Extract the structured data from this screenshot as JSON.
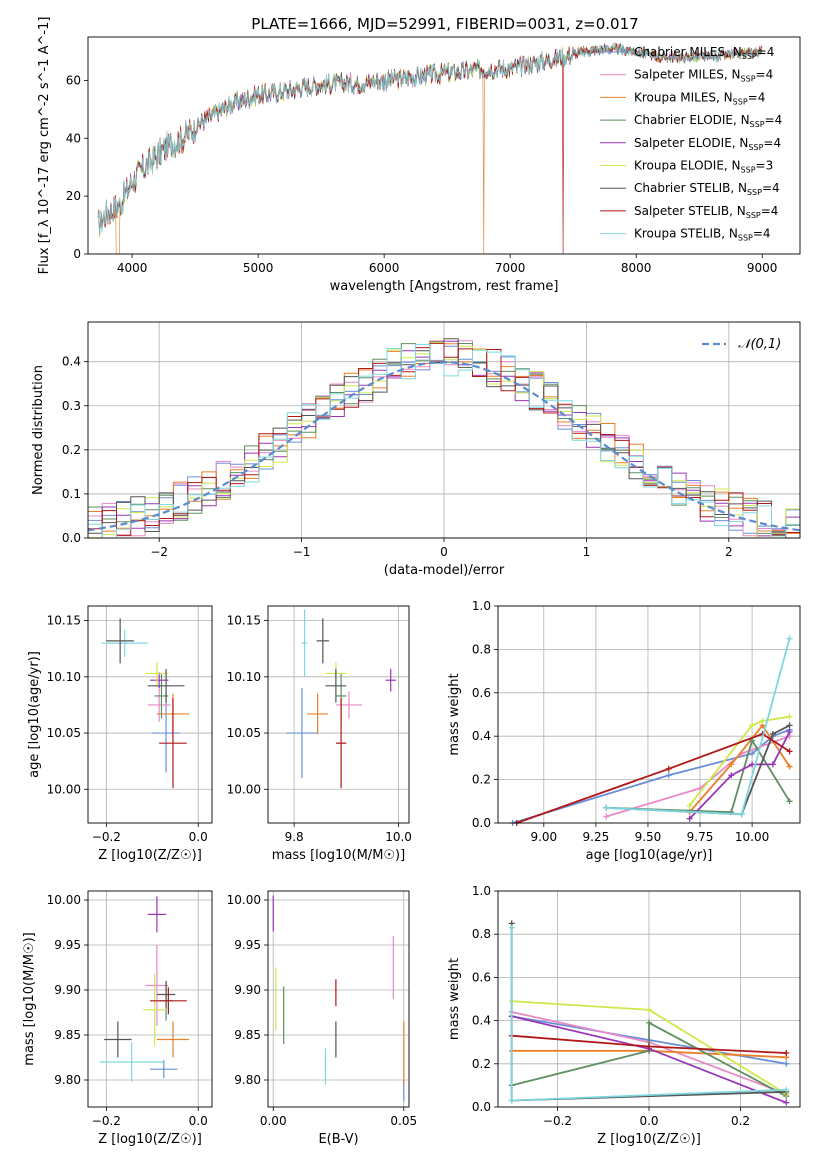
{
  "title": "PLATE=1666, MJD=52991, FIBERID=0031, z=0.017",
  "colors": {
    "Chabrier MILES": "#6a8fd8",
    "Salpeter MILES": "#e889c6",
    "Kroupa MILES": "#e8802a",
    "Chabrier ELODIE": "#5e8f62",
    "Salpeter ELODIE": "#9a35b7",
    "Kroupa ELODIE": "#cfe84b",
    "Chabrier STELIB": "#555555",
    "Salpeter STELIB": "#b01818",
    "Kroupa STELIB": "#7fd6e0"
  },
  "chart_data": [
    {
      "id": "spectrum",
      "type": "line",
      "xlabel": "wavelength [Angstrom, rest frame]",
      "ylabel": "Flux [f_λ 10^-17 erg cm^-2 s^-1 A^-1]",
      "xlim": [
        3650,
        9300
      ],
      "ylim": [
        0,
        75
      ],
      "xticks": [
        "4000",
        "5000",
        "6000",
        "7000",
        "8000",
        "9000"
      ],
      "yticks": [
        "0",
        "20",
        "40",
        "60"
      ],
      "series": [
        {
          "name": "Chabrier MILES",
          "n_ssp": "4"
        },
        {
          "name": "Salpeter MILES",
          "n_ssp": "4"
        },
        {
          "name": "Kroupa MILES",
          "n_ssp": "4"
        },
        {
          "name": "Chabrier ELODIE",
          "n_ssp": "4"
        },
        {
          "name": "Salpeter ELODIE",
          "n_ssp": "4"
        },
        {
          "name": "Kroupa ELODIE",
          "n_ssp": "3"
        },
        {
          "name": "Chabrier STELIB",
          "n_ssp": "4"
        },
        {
          "name": "Salpeter STELIB",
          "n_ssp": "4"
        },
        {
          "name": "Kroupa STELIB",
          "n_ssp": "4"
        }
      ],
      "continuum": {
        "x": [
          3730,
          3800,
          3900,
          4000,
          4100,
          4200,
          4300,
          4400,
          4500,
          4600,
          4800,
          5000,
          5200,
          5400,
          5600,
          5800,
          6000,
          6200,
          6400,
          6600,
          6800,
          7000,
          7200,
          7400,
          7600,
          7800,
          8000,
          8200,
          8500,
          8800,
          9000,
          9200
        ],
        "y": [
          10,
          14,
          17,
          25,
          30,
          34,
          38,
          40,
          44,
          47,
          52,
          55,
          56,
          58,
          59,
          59,
          60,
          61,
          62,
          63,
          64,
          64,
          66,
          68,
          70,
          71,
          70,
          68,
          68,
          69,
          70,
          71
        ]
      },
      "dropouts": [
        {
          "series": "Kroupa MILES",
          "x": 6790
        },
        {
          "series": "Salpeter STELIB",
          "x": 7420
        }
      ]
    },
    {
      "id": "residuals",
      "type": "histogram",
      "xlabel": "(data-model)/error",
      "ylabel": "Normed distribution",
      "xlim": [
        -2.5,
        2.5
      ],
      "ylim": [
        0,
        0.49
      ],
      "xticks": [
        "−2",
        "−1",
        "0",
        "1",
        "2"
      ],
      "yticks": [
        "0.0",
        "0.1",
        "0.2",
        "0.3",
        "0.4"
      ],
      "legend": "𝒩(0,1)",
      "legend_position": "top-right",
      "grid": true
    },
    {
      "id": "age-vs-Z",
      "type": "scatter",
      "xlabel": "Z [log10(Z/Z☉)]",
      "ylabel": "age  [log10(age/yr)]",
      "xlim": [
        -0.24,
        0.03
      ],
      "ylim": [
        9.97,
        10.163
      ],
      "xticks": [
        "−0.2",
        "0.0"
      ],
      "yticks": [
        "10.00",
        "10.05",
        "10.10",
        "10.15"
      ],
      "points": [
        {
          "series": "Chabrier MILES",
          "x": -0.07,
          "y": 10.05,
          "xerr": 0.03,
          "yerr": 0.035
        },
        {
          "series": "Salpeter MILES",
          "x": -0.085,
          "y": 10.075,
          "xerr": 0.025,
          "yerr": 0.015
        },
        {
          "series": "Kroupa MILES",
          "x": -0.055,
          "y": 10.067,
          "xerr": 0.035,
          "yerr": 0.018
        },
        {
          "series": "Chabrier ELODIE",
          "x": -0.08,
          "y": 10.083,
          "xerr": 0.015,
          "yerr": 0.02
        },
        {
          "series": "Salpeter ELODIE",
          "x": -0.085,
          "y": 10.097,
          "xerr": 0.02,
          "yerr": 0.007
        },
        {
          "series": "Kroupa ELODIE",
          "x": -0.09,
          "y": 10.103,
          "xerr": 0.025,
          "yerr": 0.01
        },
        {
          "series": "Chabrier STELIB",
          "x": -0.07,
          "y": 10.092,
          "xerr": 0.04,
          "yerr": 0.015
        },
        {
          "series": "Salpeter STELIB",
          "x": -0.055,
          "y": 10.041,
          "xerr": 0.03,
          "yerr": 0.04
        },
        {
          "series": "Kroupa STELIB",
          "x": -0.16,
          "y": 10.13,
          "xerr": 0.05,
          "yerr": 0.012
        },
        {
          "series": "Chabrier STELIB",
          "x": -0.17,
          "y": 10.132,
          "xerr": 0.03,
          "yerr": 0.02
        }
      ]
    },
    {
      "id": "age-vs-mass",
      "type": "scatter",
      "xlabel": "mass [log10(M/M☉)]",
      "ylabel": "",
      "xlim": [
        9.75,
        10.02
      ],
      "ylim": [
        9.97,
        10.163
      ],
      "xticks": [
        "9.8",
        "10.0"
      ],
      "yticks": [
        "10.00",
        "10.05",
        "10.10",
        "10.15"
      ],
      "points": [
        {
          "series": "Chabrier MILES",
          "x": 9.815,
          "y": 10.05,
          "xerr": 0.03,
          "yerr": 0.04
        },
        {
          "series": "Salpeter MILES",
          "x": 9.905,
          "y": 10.075,
          "xerr": 0.025,
          "yerr": 0.012
        },
        {
          "series": "Kroupa MILES",
          "x": 9.845,
          "y": 10.067,
          "xerr": 0.02,
          "yerr": 0.018
        },
        {
          "series": "Chabrier ELODIE",
          "x": 9.89,
          "y": 10.083,
          "xerr": 0.01,
          "yerr": 0.02
        },
        {
          "series": "Salpeter ELODIE",
          "x": 9.985,
          "y": 10.097,
          "xerr": 0.01,
          "yerr": 0.01
        },
        {
          "series": "Kroupa ELODIE",
          "x": 9.88,
          "y": 10.103,
          "xerr": 0.02,
          "yerr": 0.01
        },
        {
          "series": "Chabrier STELIB",
          "x": 9.88,
          "y": 10.092,
          "xerr": 0.02,
          "yerr": 0.015
        },
        {
          "series": "Salpeter STELIB",
          "x": 9.89,
          "y": 10.041,
          "xerr": 0.01,
          "yerr": 0.04
        },
        {
          "series": "Kroupa STELIB",
          "x": 9.82,
          "y": 10.13,
          "xerr": 0.005,
          "yerr": 0.03
        },
        {
          "series": "Chabrier STELIB",
          "x": 9.855,
          "y": 10.132,
          "xerr": 0.012,
          "yerr": 0.02
        }
      ]
    },
    {
      "id": "weight-vs-age",
      "type": "line",
      "xlabel": "age  [log10(age/yr)]",
      "ylabel": "mass weight",
      "xlim": [
        8.78,
        10.23
      ],
      "ylim": [
        0,
        1
      ],
      "xticks": [
        "9.00",
        "9.25",
        "9.50",
        "9.75",
        "10.00"
      ],
      "yticks": [
        "0.0",
        "0.2",
        "0.4",
        "0.6",
        "0.8",
        "1.0"
      ],
      "grid": true,
      "series": [
        {
          "name": "Chabrier MILES",
          "x": [
            8.85,
            9.6,
            10.0,
            10.1,
            10.18
          ],
          "y": [
            0.0,
            0.22,
            0.32,
            0.4,
            0.43
          ]
        },
        {
          "name": "Salpeter MILES",
          "x": [
            9.3,
            9.75,
            9.95,
            10.18
          ],
          "y": [
            0.03,
            0.16,
            0.32,
            0.4
          ]
        },
        {
          "name": "Kroupa MILES",
          "x": [
            9.7,
            9.9,
            10.05,
            10.18
          ],
          "y": [
            0.05,
            0.27,
            0.45,
            0.26
          ]
        },
        {
          "name": "Chabrier ELODIE",
          "x": [
            9.3,
            9.9,
            10.0,
            10.18
          ],
          "y": [
            0.07,
            0.05,
            0.38,
            0.1
          ]
        },
        {
          "name": "Salpeter ELODIE",
          "x": [
            9.7,
            9.9,
            10.0,
            10.1,
            10.18
          ],
          "y": [
            0.02,
            0.22,
            0.27,
            0.27,
            0.42
          ]
        },
        {
          "name": "Kroupa ELODIE",
          "x": [
            9.7,
            10.0,
            10.05,
            10.18
          ],
          "y": [
            0.08,
            0.45,
            0.47,
            0.49
          ]
        },
        {
          "name": "Chabrier STELIB",
          "x": [
            9.3,
            9.95,
            10.1,
            10.18
          ],
          "y": [
            0.07,
            0.04,
            0.41,
            0.45
          ]
        },
        {
          "name": "Salpeter STELIB",
          "x": [
            8.87,
            9.6,
            10.05,
            10.18
          ],
          "y": [
            0.0,
            0.25,
            0.41,
            0.33
          ]
        },
        {
          "name": "Kroupa STELIB",
          "x": [
            9.3,
            9.95,
            10.18
          ],
          "y": [
            0.07,
            0.04,
            0.85
          ]
        }
      ]
    },
    {
      "id": "mass-vs-Z",
      "type": "scatter",
      "xlabel": "Z [log10(Z/Z☉)]",
      "ylabel": "mass [log10(M/M☉)]",
      "xlim": [
        -0.24,
        0.03
      ],
      "ylim": [
        9.77,
        10.01
      ],
      "xticks": [
        "−0.2",
        "0.0"
      ],
      "yticks": [
        "9.80",
        "9.85",
        "9.90",
        "9.95",
        "10.00"
      ],
      "points": [
        {
          "series": "Chabrier MILES",
          "x": -0.075,
          "y": 9.812,
          "xerr": 0.03,
          "yerr": 0.01
        },
        {
          "series": "Salpeter MILES",
          "x": -0.09,
          "y": 9.905,
          "xerr": 0.025,
          "yerr": 0.045
        },
        {
          "series": "Kroupa MILES",
          "x": -0.055,
          "y": 9.845,
          "xerr": 0.035,
          "yerr": 0.02
        },
        {
          "series": "Chabrier ELODIE",
          "x": -0.07,
          "y": 9.888,
          "xerr": 0.015,
          "yerr": 0.022
        },
        {
          "series": "Salpeter ELODIE",
          "x": -0.09,
          "y": 9.984,
          "xerr": 0.02,
          "yerr": 0.02
        },
        {
          "series": "Kroupa ELODIE",
          "x": -0.095,
          "y": 9.878,
          "xerr": 0.025,
          "yerr": 0.04
        },
        {
          "series": "Chabrier STELIB",
          "x": -0.07,
          "y": 9.895,
          "xerr": 0.02,
          "yerr": 0.015
        },
        {
          "series": "Salpeter STELIB",
          "x": -0.065,
          "y": 9.888,
          "xerr": 0.04,
          "yerr": 0.015
        },
        {
          "series": "Kroupa STELIB",
          "x": -0.145,
          "y": 9.82,
          "xerr": 0.07,
          "yerr": 0.022
        },
        {
          "series": "Chabrier STELIB",
          "x": -0.175,
          "y": 9.845,
          "xerr": 0.03,
          "yerr": 0.02
        }
      ]
    },
    {
      "id": "mass-vs-ebv",
      "type": "scatter",
      "xlabel": "E(B-V)",
      "ylabel": "",
      "xlim": [
        -0.002,
        0.052
      ],
      "ylim": [
        9.77,
        10.01
      ],
      "xticks": [
        "0.00",
        "0.05"
      ],
      "yticks": [
        "9.80",
        "9.85",
        "9.90",
        "9.95",
        "10.00"
      ],
      "points": [
        {
          "series": "Chabrier MILES",
          "x": 0.05,
          "y": 9.788,
          "yerr": 0.012
        },
        {
          "series": "Salpeter MILES",
          "x": 0.046,
          "y": 9.925,
          "yerr": 0.035
        },
        {
          "series": "Kroupa MILES",
          "x": 0.05,
          "y": 9.83,
          "yerr": 0.035
        },
        {
          "series": "Chabrier ELODIE",
          "x": 0.004,
          "y": 9.872,
          "yerr": 0.032
        },
        {
          "series": "Salpeter ELODIE",
          "x": 0.0,
          "y": 9.985,
          "yerr": 0.02
        },
        {
          "series": "Kroupa ELODIE",
          "x": 0.001,
          "y": 9.89,
          "yerr": 0.035
        },
        {
          "series": "Chabrier STELIB",
          "x": 0.024,
          "y": 9.845,
          "yerr": 0.02
        },
        {
          "series": "Salpeter STELIB",
          "x": 0.024,
          "y": 9.897,
          "yerr": 0.015
        },
        {
          "series": "Kroupa STELIB",
          "x": 0.02,
          "y": 9.815,
          "yerr": 0.02
        }
      ]
    },
    {
      "id": "weight-vs-Z",
      "type": "line",
      "xlabel": "Z [log10(Z/Z☉)]",
      "ylabel": "mass weight",
      "xlim": [
        -0.33,
        0.33
      ],
      "ylim": [
        0,
        1
      ],
      "xticks": [
        "−0.2",
        "0.0",
        "0.2"
      ],
      "yticks": [
        "0.0",
        "0.2",
        "0.4",
        "0.6",
        "0.8",
        "1.0"
      ],
      "grid": true,
      "series": [
        {
          "name": "Chabrier MILES",
          "x": [
            -0.3,
            0.0,
            0.3
          ],
          "y": [
            0.42,
            0.31,
            0.2
          ]
        },
        {
          "name": "Salpeter MILES",
          "x": [
            -0.3,
            0.0,
            0.3
          ],
          "y": [
            0.44,
            0.3,
            0.06
          ]
        },
        {
          "name": "Kroupa MILES",
          "x": [
            -0.3,
            0.0,
            0.3
          ],
          "y": [
            0.26,
            0.26,
            0.23
          ]
        },
        {
          "name": "Chabrier ELODIE",
          "x": [
            -0.3,
            0.0,
            0.0,
            0.3
          ],
          "y": [
            0.1,
            0.26,
            0.39,
            0.05
          ]
        },
        {
          "name": "Salpeter ELODIE",
          "x": [
            -0.3,
            0.0,
            0.3
          ],
          "y": [
            0.42,
            0.27,
            0.02
          ]
        },
        {
          "name": "Kroupa ELODIE",
          "x": [
            -0.3,
            0.0,
            0.3
          ],
          "y": [
            0.49,
            0.45,
            0.06
          ]
        },
        {
          "name": "Chabrier STELIB",
          "x": [
            -0.3,
            -0.3,
            0.3
          ],
          "y": [
            0.85,
            0.03,
            0.07
          ]
        },
        {
          "name": "Salpeter STELIB",
          "x": [
            -0.3,
            0.0,
            0.3
          ],
          "y": [
            0.33,
            0.28,
            0.25
          ]
        },
        {
          "name": "Kroupa STELIB",
          "x": [
            -0.3,
            -0.3,
            0.3
          ],
          "y": [
            0.83,
            0.03,
            0.08
          ]
        }
      ]
    }
  ]
}
